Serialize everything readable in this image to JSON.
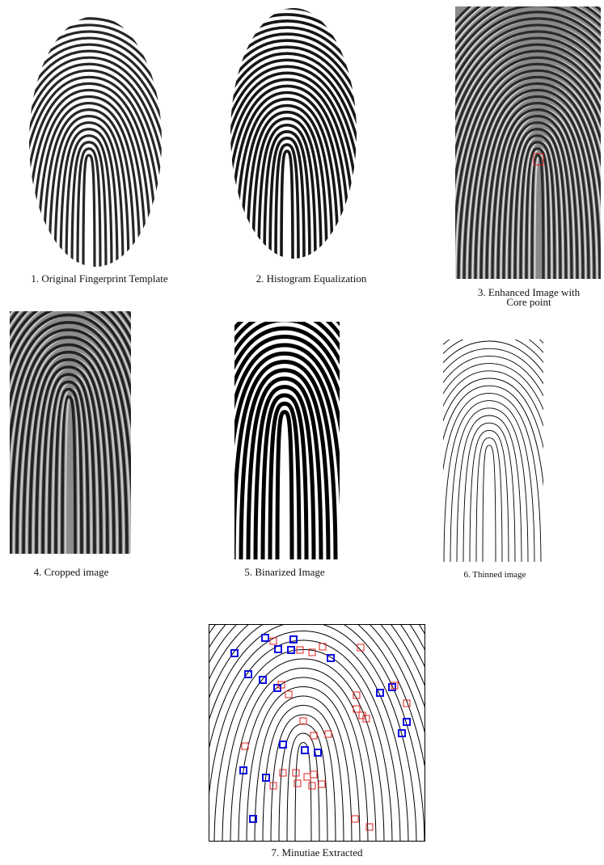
{
  "panels": [
    {
      "caption": "1. Original Fingerprint Template"
    },
    {
      "caption": "2. Histogram Equalization"
    },
    {
      "caption": [
        "3. Enhanced Image with",
        "Core point"
      ]
    },
    {
      "caption": "4. Cropped image"
    },
    {
      "caption": "5. Binarized Image"
    },
    {
      "caption": "6. Thinned image"
    },
    {
      "caption": "7. Minutiae Extracted"
    }
  ]
}
